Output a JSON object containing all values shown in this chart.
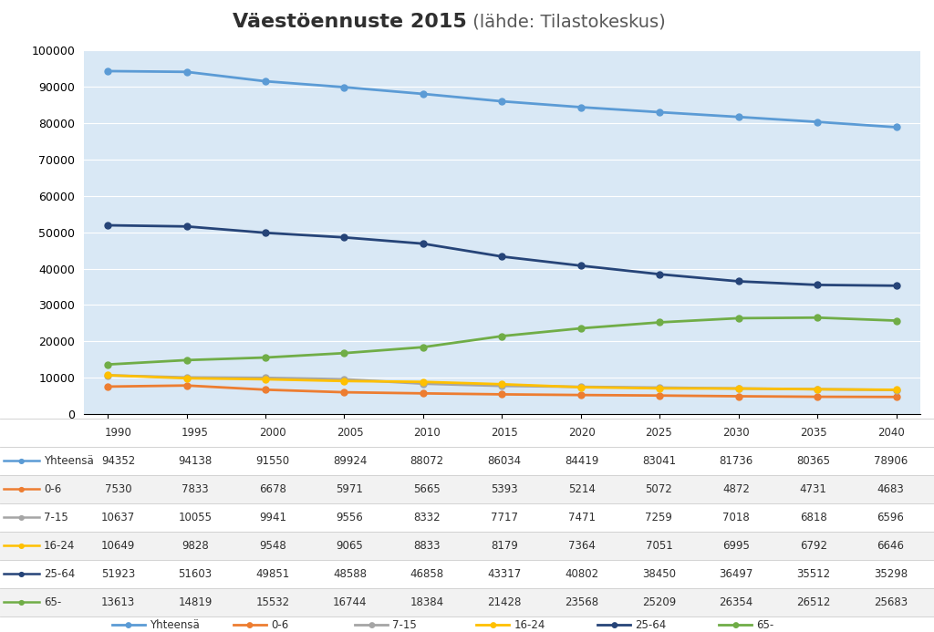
{
  "title_bold": "Väestöennuste 2015",
  "title_light": " (lähde: Tilastokeskus)",
  "years": [
    1990,
    1995,
    2000,
    2005,
    2010,
    2015,
    2020,
    2025,
    2030,
    2035,
    2040
  ],
  "series": {
    "Yhteensä": [
      94352,
      94138,
      91550,
      89924,
      88072,
      86034,
      84419,
      83041,
      81736,
      80365,
      78906
    ],
    "0-6": [
      7530,
      7833,
      6678,
      5971,
      5665,
      5393,
      5214,
      5072,
      4872,
      4731,
      4683
    ],
    "7-15": [
      10637,
      10055,
      9941,
      9556,
      8332,
      7717,
      7471,
      7259,
      7018,
      6818,
      6596
    ],
    "16-24": [
      10649,
      9828,
      9548,
      9065,
      8833,
      8179,
      7364,
      7051,
      6995,
      6792,
      6646
    ],
    "25-64": [
      51923,
      51603,
      49851,
      48588,
      46858,
      43317,
      40802,
      38450,
      36497,
      35512,
      35298
    ],
    "65-": [
      13613,
      14819,
      15532,
      16744,
      18384,
      21428,
      23568,
      25209,
      26354,
      26512,
      25683
    ]
  },
  "colors": {
    "Yhteensä": "#5B9BD5",
    "0-6": "#ED7D31",
    "7-15": "#A5A5A5",
    "16-24": "#FFC000",
    "25-64": "#264478",
    "65-": "#70AD47"
  },
  "ylim": [
    0,
    100000
  ],
  "yticks": [
    0,
    10000,
    20000,
    30000,
    40000,
    50000,
    60000,
    70000,
    80000,
    90000,
    100000
  ],
  "plot_bg": "#D9E8F5",
  "series_order": [
    "Yhteensä",
    "0-6",
    "7-15",
    "16-24",
    "25-64",
    "65-"
  ],
  "legend_labels": [
    "Yhteensä",
    "0-6",
    "7-15",
    "16-24",
    "25-64",
    "65-"
  ]
}
